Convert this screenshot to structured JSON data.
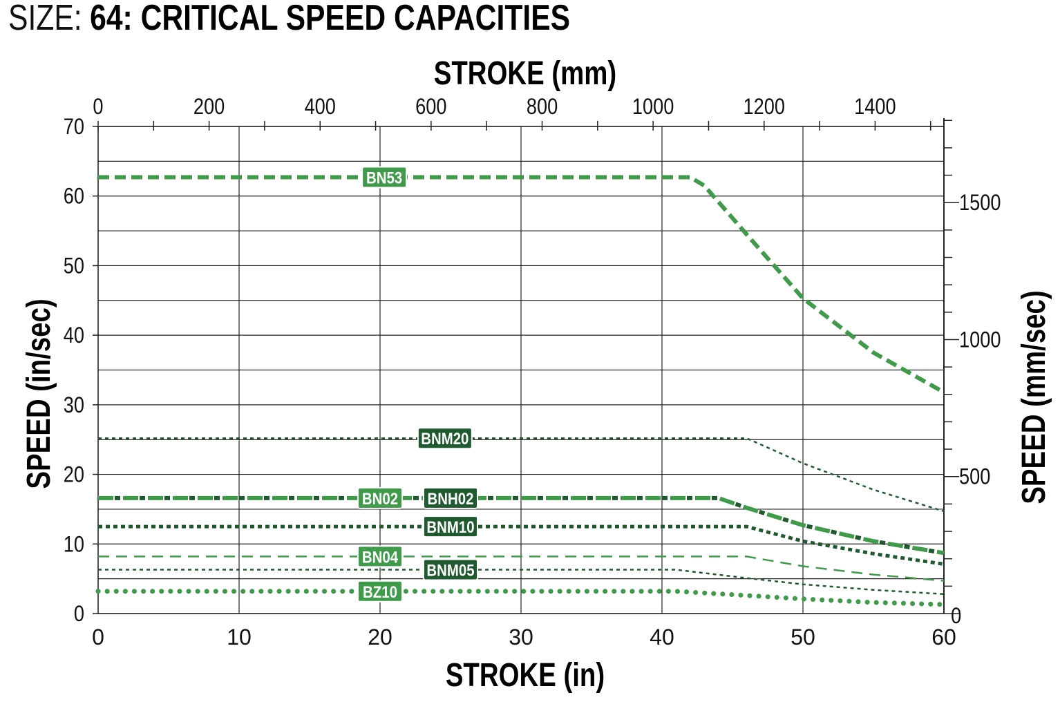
{
  "title": {
    "prefix": "SIZE:",
    "main": "64: CRITICAL SPEED CAPACITIES"
  },
  "chart_data": {
    "type": "line",
    "title": "64: CRITICAL SPEED CAPACITIES",
    "xlabel": "STROKE (in)",
    "x2label": "STROKE (mm)",
    "ylabel": "SPEED (in/sec)",
    "y2label": "SPEED (mm/sec)",
    "xlim": [
      0,
      60
    ],
    "ylim": [
      0,
      70
    ],
    "x2lim": [
      0,
      1524
    ],
    "y2lim": [
      0,
      1778
    ],
    "xticks": [
      "0",
      "10",
      "20",
      "30",
      "40",
      "50",
      "60"
    ],
    "yticks": [
      "0",
      "10",
      "20",
      "30",
      "40",
      "50",
      "60",
      "70"
    ],
    "x2ticks": [
      "0",
      "200",
      "400",
      "600",
      "800",
      "1000",
      "1200",
      "1400"
    ],
    "y2ticks": [
      "0",
      "500",
      "1000",
      "1500"
    ],
    "grid": true,
    "colors": {
      "light": "#3f9a4a",
      "dark": "#1e5a2e"
    },
    "series": [
      {
        "name": "BN53",
        "color": "light",
        "style": "dash-thick",
        "label_x": 20.3,
        "x": [
          0,
          42,
          43,
          46,
          50,
          55,
          60
        ],
        "y": [
          62.7,
          62.7,
          61.5,
          54.5,
          45.3,
          37.5,
          31.8
        ]
      },
      {
        "name": "BNM20",
        "color": "dark",
        "style": "dot-thin",
        "label_x": 24.6,
        "x": [
          0,
          46,
          50,
          55,
          60
        ],
        "y": [
          25.2,
          25.2,
          21.6,
          17.8,
          14.7
        ]
      },
      {
        "name": "BN02",
        "color": "light",
        "style": "dash-dot-a",
        "label_x": 20.0,
        "x": [
          0,
          44,
          46,
          50,
          55,
          60
        ],
        "y": [
          16.6,
          16.6,
          15.2,
          12.7,
          10.4,
          8.7
        ]
      },
      {
        "name": "BNH02",
        "color": "dark",
        "style": "dash-dot-b",
        "label_x": 25.0,
        "x": [
          0,
          44,
          46,
          50,
          55,
          60
        ],
        "y": [
          16.6,
          16.6,
          15.2,
          12.7,
          10.4,
          8.7
        ]
      },
      {
        "name": "BNM10",
        "color": "dark",
        "style": "dot-thick",
        "label_x": 25.0,
        "x": [
          0,
          46,
          50,
          55,
          60
        ],
        "y": [
          12.5,
          12.5,
          10.4,
          8.6,
          7.1
        ]
      },
      {
        "name": "BN04",
        "color": "light",
        "style": "dash-thin",
        "label_x": 20.0,
        "x": [
          0,
          46,
          50,
          55,
          60
        ],
        "y": [
          8.2,
          8.2,
          6.8,
          5.6,
          4.7
        ]
      },
      {
        "name": "BNM05",
        "color": "dark",
        "style": "dot-thin",
        "label_x": 25.0,
        "x": [
          0,
          41,
          46,
          50,
          55,
          60
        ],
        "y": [
          6.3,
          6.3,
          5.1,
          4.2,
          3.4,
          2.8
        ]
      },
      {
        "name": "BZ10",
        "color": "light",
        "style": "round-dot",
        "label_x": 20.0,
        "x": [
          0,
          41,
          46,
          50,
          55,
          60
        ],
        "y": [
          3.2,
          3.2,
          2.6,
          2.1,
          1.6,
          1.3
        ]
      }
    ]
  }
}
